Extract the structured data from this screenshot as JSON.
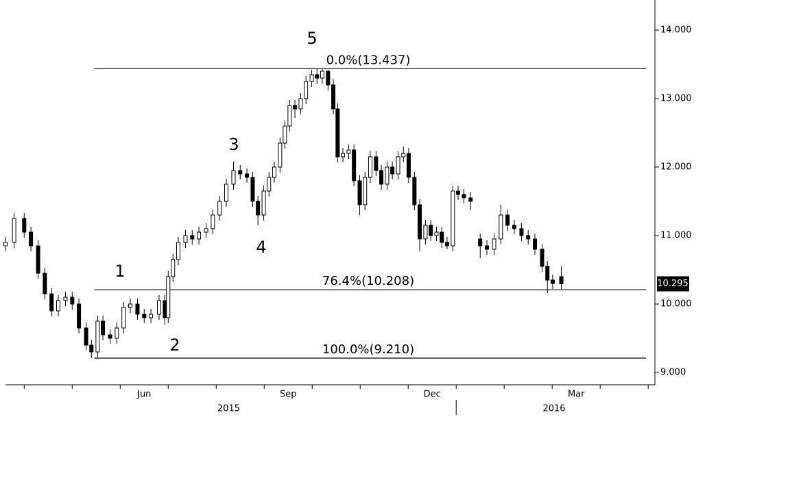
{
  "chart_data": {
    "type": "candlestick",
    "x": [
      -0.39,
      -0.21,
      0,
      0.14,
      0.29,
      0.43,
      0.57,
      0.71,
      0.86,
      1.0,
      1.14,
      1.29,
      1.4,
      1.53,
      1.64,
      1.79,
      1.93,
      2.07,
      2.21,
      2.36,
      2.5,
      2.64,
      2.81,
      2.93,
      3.0,
      3.1,
      3.21,
      3.36,
      3.5,
      3.64,
      3.79,
      3.93,
      4.07,
      4.21,
      4.36,
      4.5,
      4.64,
      4.76,
      4.87,
      4.99,
      5.1,
      5.21,
      5.33,
      5.43,
      5.53,
      5.64,
      5.76,
      5.87,
      5.99,
      6.1,
      6.21,
      6.33,
      6.44,
      6.53,
      6.64,
      6.76,
      6.87,
      6.99,
      7.1,
      7.21,
      7.33,
      7.44,
      7.56,
      7.67,
      7.79,
      7.9,
      8.01,
      8.13,
      8.24,
      8.36,
      8.47,
      8.59,
      8.7,
      8.81,
      8.93,
      9.04,
      9.16,
      9.3,
      9.5,
      9.64,
      9.79,
      9.93,
      10.07,
      10.21,
      10.36,
      10.5,
      10.64,
      10.79,
      10.9,
      11.01,
      11.19
    ],
    "open": [
      10.85,
      10.9,
      11.25,
      11.05,
      10.85,
      10.45,
      10.15,
      9.9,
      10.05,
      10.1,
      10.0,
      9.65,
      9.4,
      9.3,
      9.75,
      9.55,
      9.5,
      9.65,
      9.95,
      10.0,
      9.85,
      9.8,
      9.85,
      10.05,
      9.8,
      10.4,
      10.65,
      10.9,
      11.0,
      10.95,
      11.05,
      11.1,
      11.3,
      11.5,
      11.75,
      11.95,
      11.9,
      11.85,
      11.5,
      11.3,
      11.65,
      11.85,
      12.0,
      12.35,
      12.6,
      12.9,
      12.85,
      13.0,
      13.25,
      13.35,
      13.3,
      13.4,
      13.2,
      12.85,
      12.15,
      12.2,
      12.25,
      11.8,
      11.45,
      11.85,
      12.15,
      11.95,
      11.75,
      12.0,
      11.9,
      12.15,
      12.2,
      11.85,
      11.45,
      10.95,
      11.15,
      11.0,
      11.05,
      10.9,
      10.85,
      11.65,
      11.6,
      11.55,
      10.95,
      10.85,
      10.8,
      10.95,
      11.3,
      11.15,
      11.1,
      11.0,
      10.95,
      10.8,
      10.55,
      10.35,
      10.4
    ],
    "high": [
      10.98,
      11.33,
      11.33,
      11.13,
      10.93,
      10.53,
      10.23,
      10.13,
      10.18,
      10.18,
      10.08,
      9.73,
      9.48,
      9.83,
      9.83,
      9.63,
      9.73,
      10.03,
      10.08,
      10.08,
      9.93,
      9.93,
      10.13,
      10.13,
      10.48,
      10.73,
      10.98,
      11.08,
      11.08,
      11.13,
      11.18,
      11.38,
      11.58,
      11.83,
      12.08,
      12.03,
      11.98,
      11.93,
      11.58,
      11.73,
      11.93,
      12.08,
      12.43,
      12.68,
      12.98,
      12.98,
      13.08,
      13.33,
      13.42,
      13.43,
      13.437,
      13.42,
      13.28,
      12.93,
      12.28,
      12.33,
      12.33,
      11.88,
      11.93,
      12.23,
      12.23,
      12.03,
      12.08,
      12.08,
      12.23,
      12.3,
      12.28,
      11.93,
      11.53,
      11.23,
      11.23,
      11.13,
      11.13,
      10.98,
      11.73,
      11.73,
      11.68,
      11.63,
      11.03,
      10.93,
      11.03,
      11.45,
      11.38,
      11.23,
      11.18,
      11.08,
      11.03,
      10.88,
      10.63,
      10.43,
      10.55
    ],
    "low": [
      10.77,
      10.82,
      10.97,
      10.77,
      10.37,
      10.07,
      9.82,
      9.82,
      9.97,
      9.92,
      9.57,
      9.32,
      9.21,
      9.22,
      9.47,
      9.42,
      9.42,
      9.57,
      9.87,
      9.77,
      9.72,
      9.72,
      9.77,
      9.7,
      9.72,
      10.32,
      10.57,
      10.82,
      10.87,
      10.87,
      10.97,
      11.02,
      11.22,
      11.42,
      11.67,
      11.82,
      11.77,
      11.42,
      11.15,
      11.22,
      11.57,
      11.77,
      11.92,
      12.27,
      12.52,
      12.72,
      12.77,
      12.92,
      13.17,
      13.22,
      13.22,
      13.12,
      12.77,
      12.07,
      12.07,
      12.12,
      11.72,
      11.3,
      11.37,
      11.77,
      11.87,
      11.67,
      11.67,
      11.82,
      11.82,
      12.07,
      11.77,
      11.37,
      10.77,
      10.87,
      10.92,
      10.92,
      10.82,
      10.8,
      10.77,
      11.52,
      11.47,
      11.37,
      10.67,
      10.72,
      10.72,
      10.87,
      11.07,
      11.02,
      10.92,
      10.87,
      10.72,
      10.47,
      10.16,
      10.22,
      10.22
    ],
    "close": [
      10.9,
      11.25,
      11.05,
      10.85,
      10.45,
      10.15,
      9.9,
      10.05,
      10.1,
      10.0,
      9.65,
      9.4,
      9.3,
      9.75,
      9.55,
      9.5,
      9.65,
      9.95,
      10.0,
      9.85,
      9.8,
      9.85,
      10.05,
      9.8,
      10.4,
      10.65,
      10.9,
      11.0,
      10.95,
      11.05,
      11.1,
      11.3,
      11.5,
      11.75,
      11.95,
      11.9,
      11.85,
      11.5,
      11.3,
      11.65,
      11.85,
      12.0,
      12.35,
      12.6,
      12.9,
      12.85,
      13.0,
      13.25,
      13.35,
      13.3,
      13.4,
      13.2,
      12.85,
      12.15,
      12.2,
      12.25,
      11.8,
      11.45,
      11.85,
      12.15,
      11.95,
      11.75,
      12.0,
      11.9,
      12.15,
      12.2,
      11.85,
      11.45,
      10.95,
      11.15,
      11.0,
      11.05,
      10.9,
      10.85,
      11.65,
      11.6,
      11.55,
      11.5,
      10.85,
      10.8,
      10.95,
      11.3,
      11.15,
      11.1,
      11.0,
      10.95,
      10.8,
      10.55,
      10.35,
      10.3,
      10.295
    ],
    "xlim": [
      -0.39,
      13.14
    ],
    "ylim": [
      8.82,
      14.39
    ],
    "yticks": [
      {
        "value": 9,
        "label": "9.000"
      },
      {
        "value": 10,
        "label": "10.000"
      },
      {
        "value": 11,
        "label": "11.000"
      },
      {
        "value": 12,
        "label": "12.000"
      },
      {
        "value": 13,
        "label": "13.000"
      },
      {
        "value": 14,
        "label": "14.000"
      }
    ],
    "xticks": [
      {
        "value": 2.5,
        "label": "Jun"
      },
      {
        "value": 5.5,
        "label": "Sep"
      },
      {
        "value": 8.5,
        "label": "Dec"
      },
      {
        "value": 11.5,
        "label": "Mar"
      }
    ],
    "minor_xticks": [
      0,
      1,
      2,
      3,
      4,
      5,
      6,
      7,
      8,
      9,
      10,
      11,
      12,
      13
    ],
    "year_labels": [
      {
        "value": 4.26,
        "label": "2015"
      },
      {
        "value": 11.04,
        "label": "2016"
      }
    ],
    "year_divider": 9,
    "fib_start": 1.46,
    "fib_levels": [
      {
        "value": 13.437,
        "label": "0.0%(13.437)"
      },
      {
        "value": 10.208,
        "label": "76.4%(10.208)"
      },
      {
        "value": 9.21,
        "label": "100.0%(9.210)"
      }
    ],
    "annotations": [
      "1",
      "2",
      "3",
      "4",
      "5"
    ],
    "last_price": 10.295
  }
}
